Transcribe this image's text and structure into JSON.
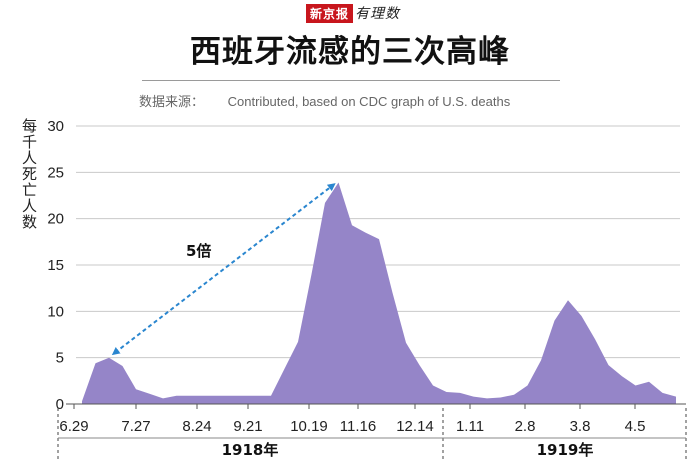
{
  "brand": {
    "name_box": "新京报",
    "name_script": "有理数"
  },
  "chart_data": {
    "type": "area",
    "title": "西班牙流感的三次高峰",
    "source_label": "数据来源：",
    "source_text": "Contributed, based on CDC graph of U.S. deaths",
    "ylabel": "每千人死亡人数",
    "ylim": [
      0,
      30
    ],
    "yticks": [
      0,
      5,
      10,
      15,
      20,
      25,
      30
    ],
    "grid": true,
    "color": "#9585c8",
    "xtick_labels": [
      "6.29",
      "7.27",
      "8.24",
      "9.21",
      "10.19",
      "11.16",
      "12.14",
      "1.11",
      "2.8",
      "3.8",
      "4.5"
    ],
    "year_labels": [
      "1918年",
      "1919年"
    ],
    "annotation": "5倍",
    "values": [
      0.3,
      4.4,
      5.0,
      4.1,
      1.6,
      1.1,
      0.6,
      0.9,
      0.9,
      0.9,
      0.9,
      0.9,
      0.9,
      0.9,
      0.9,
      3.8,
      6.7,
      14.0,
      21.7,
      23.9,
      19.3,
      18.5,
      17.8,
      12.0,
      6.6,
      4.2,
      2.0,
      1.3,
      1.2,
      0.8,
      0.6,
      0.7,
      1.0,
      2.0,
      4.7,
      9.0,
      11.2,
      9.5,
      7.0,
      4.2,
      3.0,
      2.0,
      2.4,
      1.2,
      0.8
    ]
  }
}
